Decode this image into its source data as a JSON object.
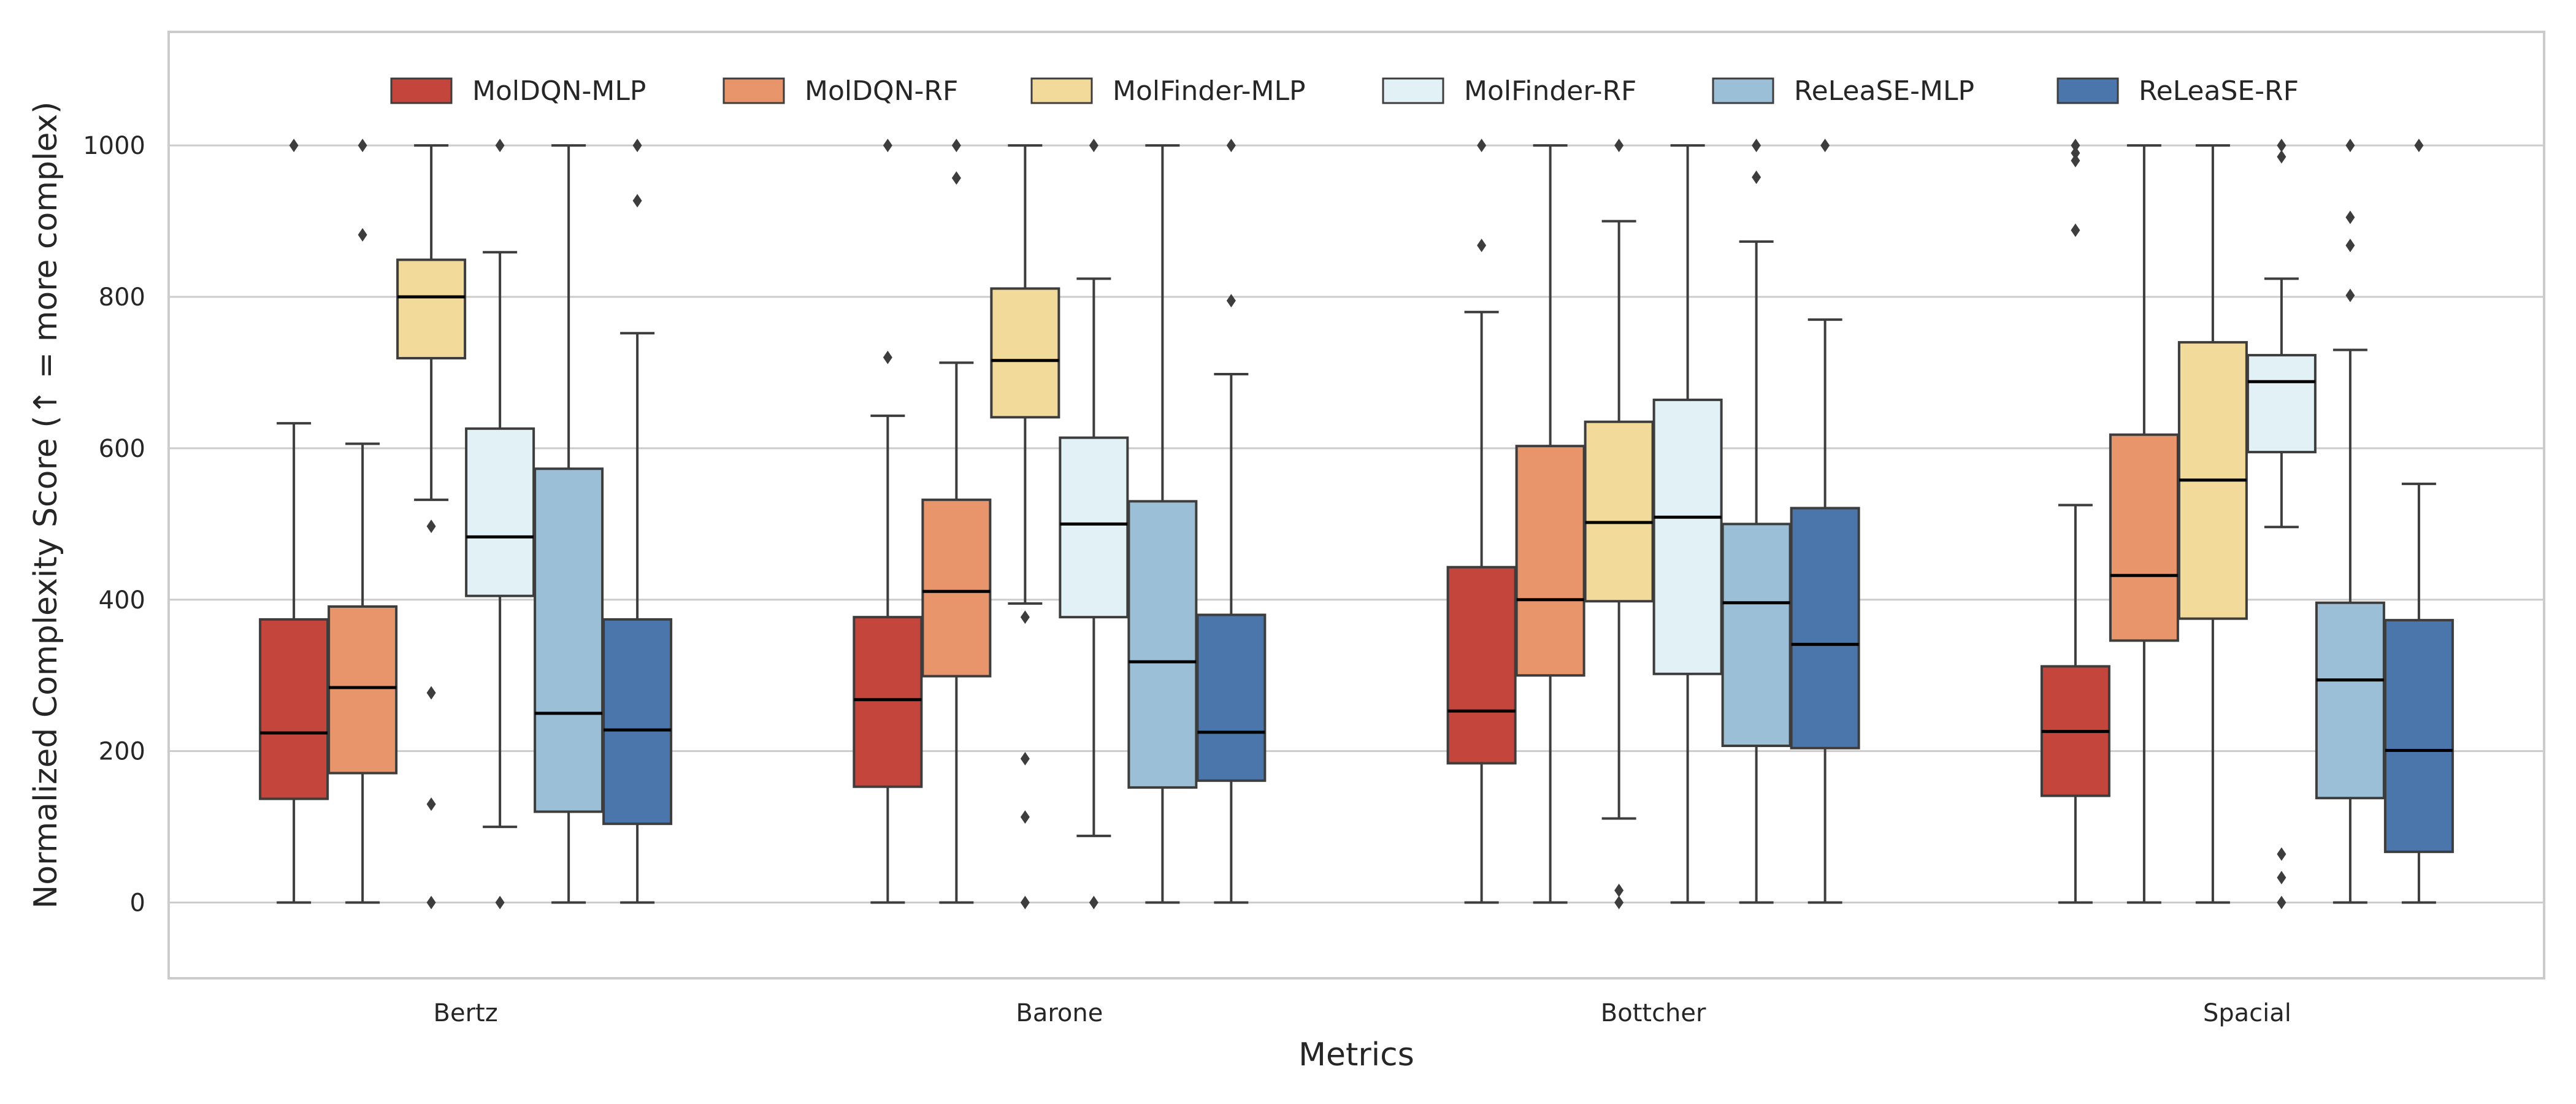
{
  "chart_data": {
    "type": "box",
    "title": "",
    "xlabel": "Metrics",
    "ylabel": "Normalized Complexity Score (↑ = more complex)",
    "ylim": [
      -100,
      1150
    ],
    "yticks": [
      0,
      200,
      400,
      600,
      800,
      1000
    ],
    "categories": [
      "Bertz",
      "Barone",
      "Bottcher",
      "Spacial"
    ],
    "grid": "horizontal",
    "legend_position": "top-center",
    "series": [
      {
        "name": "MolDQN-MLP",
        "color": "#c4453c",
        "boxes": [
          {
            "whislo": 0,
            "q1": 137,
            "med": 224,
            "q3": 374,
            "whishi": 633,
            "fliers": [
              1000
            ]
          },
          {
            "whislo": 0,
            "q1": 153,
            "med": 268,
            "q3": 377,
            "whishi": 643,
            "fliers": [
              720,
              1000
            ]
          },
          {
            "whislo": 0,
            "q1": 184,
            "med": 253,
            "q3": 443,
            "whishi": 780,
            "fliers": [
              868,
              1000
            ]
          },
          {
            "whislo": 0,
            "q1": 141,
            "med": 226,
            "q3": 312,
            "whishi": 525,
            "fliers": [
              888,
              980,
              990,
              1000
            ]
          }
        ]
      },
      {
        "name": "MolDQN-RF",
        "color": "#e9956b",
        "boxes": [
          {
            "whislo": 0,
            "q1": 171,
            "med": 284,
            "q3": 391,
            "whishi": 606,
            "fliers": [
              882,
              1000
            ]
          },
          {
            "whislo": 0,
            "q1": 299,
            "med": 411,
            "q3": 532,
            "whishi": 713,
            "fliers": [
              957,
              1000
            ]
          },
          {
            "whislo": 0,
            "q1": 300,
            "med": 400,
            "q3": 603,
            "whishi": 1000,
            "fliers": []
          },
          {
            "whislo": 0,
            "q1": 346,
            "med": 432,
            "q3": 618,
            "whishi": 1000,
            "fliers": []
          }
        ]
      },
      {
        "name": "MolFinder-MLP",
        "color": "#f2db9a",
        "boxes": [
          {
            "whislo": 532,
            "q1": 719,
            "med": 800,
            "q3": 849,
            "whishi": 1000,
            "fliers": [
              0,
              130,
              277,
              497
            ]
          },
          {
            "whislo": 395,
            "q1": 641,
            "med": 716,
            "q3": 811,
            "whishi": 1000,
            "fliers": [
              0,
              113,
              190,
              377
            ]
          },
          {
            "whislo": 111,
            "q1": 398,
            "med": 502,
            "q3": 635,
            "whishi": 900,
            "fliers": [
              0,
              16,
              1000
            ]
          },
          {
            "whislo": 0,
            "q1": 375,
            "med": 558,
            "q3": 740,
            "whishi": 1000,
            "fliers": []
          }
        ]
      },
      {
        "name": "MolFinder-RF",
        "color": "#e2f1f6",
        "boxes": [
          {
            "whislo": 100,
            "q1": 405,
            "med": 483,
            "q3": 626,
            "whishi": 859,
            "fliers": [
              0,
              1000
            ]
          },
          {
            "whislo": 88,
            "q1": 377,
            "med": 500,
            "q3": 614,
            "whishi": 824,
            "fliers": [
              0,
              1000
            ]
          },
          {
            "whislo": 0,
            "q1": 302,
            "med": 509,
            "q3": 664,
            "whishi": 1000,
            "fliers": []
          },
          {
            "whislo": 496,
            "q1": 595,
            "med": 688,
            "q3": 723,
            "whishi": 824,
            "fliers": [
              0,
              33,
              64,
              985,
              1000
            ]
          }
        ]
      },
      {
        "name": "ReLeaSE-MLP",
        "color": "#9bbfd6",
        "boxes": [
          {
            "whislo": 0,
            "q1": 120,
            "med": 250,
            "q3": 573,
            "whishi": 1000,
            "fliers": []
          },
          {
            "whislo": 0,
            "q1": 152,
            "med": 318,
            "q3": 530,
            "whishi": 1000,
            "fliers": []
          },
          {
            "whislo": 0,
            "q1": 207,
            "med": 396,
            "q3": 500,
            "whishi": 873,
            "fliers": [
              958,
              1000
            ]
          },
          {
            "whislo": 0,
            "q1": 138,
            "med": 294,
            "q3": 396,
            "whishi": 730,
            "fliers": [
              802,
              868,
              905,
              1000
            ]
          }
        ]
      },
      {
        "name": "ReLeaSE-RF",
        "color": "#4a76ab",
        "boxes": [
          {
            "whislo": 0,
            "q1": 104,
            "med": 228,
            "q3": 374,
            "whishi": 752,
            "fliers": [
              927,
              1000
            ]
          },
          {
            "whislo": 0,
            "q1": 161,
            "med": 225,
            "q3": 380,
            "whishi": 698,
            "fliers": [
              795,
              1000
            ]
          },
          {
            "whislo": 0,
            "q1": 204,
            "med": 341,
            "q3": 521,
            "whishi": 770,
            "fliers": [
              1000
            ]
          },
          {
            "whislo": 0,
            "q1": 67,
            "med": 201,
            "q3": 373,
            "whishi": 553,
            "fliers": [
              1000
            ]
          }
        ]
      }
    ]
  }
}
